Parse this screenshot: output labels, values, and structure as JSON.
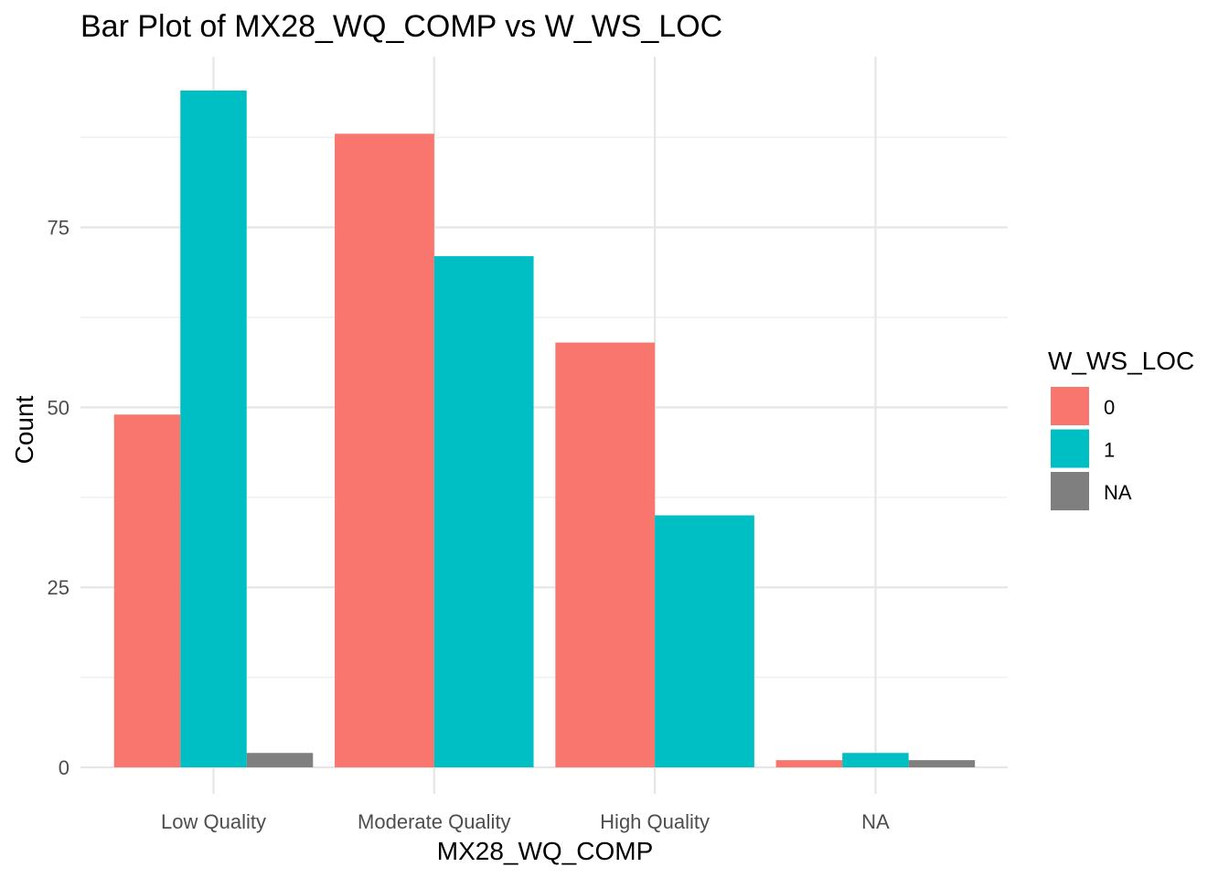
{
  "chart_data": {
    "type": "bar",
    "title": "Bar Plot of MX28_WQ_COMP vs W_WS_LOC",
    "xlabel": "MX28_WQ_COMP",
    "ylabel": "Count",
    "categories": [
      "Low Quality",
      "Moderate Quality",
      "High Quality",
      "NA"
    ],
    "series": [
      {
        "name": "0",
        "color": "#F8766D",
        "values": [
          49,
          88,
          59,
          1
        ]
      },
      {
        "name": "1",
        "color": "#00BFC4",
        "values": [
          94,
          71,
          35,
          2
        ]
      },
      {
        "name": "NA",
        "color": "#7F7F7F",
        "values": [
          2,
          null,
          null,
          1
        ]
      }
    ],
    "ylim": [
      0,
      97
    ],
    "yticks": [
      0,
      25,
      50,
      75
    ],
    "grid": true,
    "legend": {
      "title": "W_WS_LOC",
      "position": "right"
    }
  }
}
